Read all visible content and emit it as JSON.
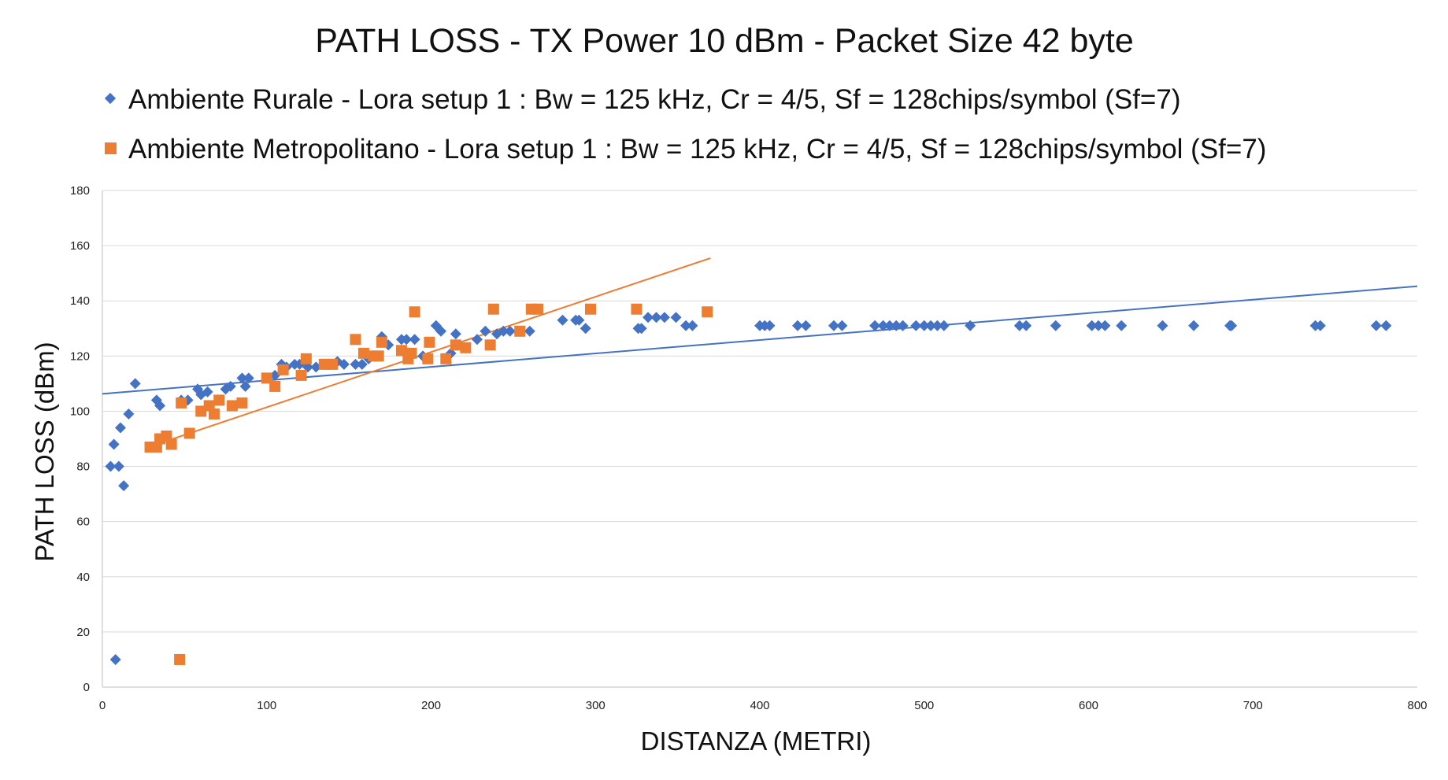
{
  "chart_data": {
    "type": "scatter",
    "title": "PATH LOSS - TX Power 10 dBm - Packet Size 42 byte",
    "xlabel": "DISTANZA (METRI)",
    "ylabel": "PATH LOSS (dBm)",
    "xlim": [
      0,
      800
    ],
    "ylim": [
      0,
      180
    ],
    "xticks": [
      0,
      100,
      200,
      300,
      400,
      500,
      600,
      700,
      800
    ],
    "yticks": [
      0,
      20,
      40,
      60,
      80,
      100,
      120,
      140,
      160,
      180
    ],
    "grid": true,
    "legend_position": "top",
    "series": [
      {
        "name": "Ambiente Rurale - Lora setup 1 : Bw = 125 kHz, Cr = 4/5, Sf = 128chips/symbol (Sf=7)",
        "marker": "diamond",
        "color": "#4472C4",
        "points": [
          [
            5,
            80
          ],
          [
            7,
            88
          ],
          [
            8,
            10
          ],
          [
            10,
            80
          ],
          [
            11,
            94
          ],
          [
            13,
            73
          ],
          [
            16,
            99
          ],
          [
            20,
            110
          ],
          [
            33,
            104
          ],
          [
            35,
            102
          ],
          [
            48,
            104
          ],
          [
            52,
            104
          ],
          [
            58,
            108
          ],
          [
            60,
            106
          ],
          [
            64,
            107
          ],
          [
            75,
            108
          ],
          [
            78,
            109
          ],
          [
            85,
            112
          ],
          [
            87,
            109
          ],
          [
            89,
            112
          ],
          [
            100,
            112
          ],
          [
            105,
            113
          ],
          [
            109,
            117
          ],
          [
            112,
            116
          ],
          [
            117,
            117
          ],
          [
            120,
            117
          ],
          [
            125,
            116
          ],
          [
            130,
            116
          ],
          [
            135,
            117
          ],
          [
            143,
            118
          ],
          [
            147,
            117
          ],
          [
            154,
            117
          ],
          [
            158,
            117
          ],
          [
            162,
            119
          ],
          [
            167,
            120
          ],
          [
            170,
            127
          ],
          [
            174,
            124
          ],
          [
            182,
            126
          ],
          [
            185,
            126
          ],
          [
            190,
            126
          ],
          [
            195,
            120
          ],
          [
            203,
            131
          ],
          [
            206,
            129
          ],
          [
            212,
            121
          ],
          [
            215,
            128
          ],
          [
            228,
            126
          ],
          [
            233,
            129
          ],
          [
            240,
            128
          ],
          [
            244,
            129
          ],
          [
            248,
            129
          ],
          [
            253,
            129
          ],
          [
            260,
            129
          ],
          [
            280,
            133
          ],
          [
            288,
            133
          ],
          [
            290,
            133
          ],
          [
            294,
            130
          ],
          [
            326,
            130
          ],
          [
            328,
            130
          ],
          [
            332,
            134
          ],
          [
            337,
            134
          ],
          [
            342,
            134
          ],
          [
            349,
            134
          ],
          [
            355,
            131
          ],
          [
            359,
            131
          ],
          [
            400,
            131
          ],
          [
            403,
            131
          ],
          [
            406,
            131
          ],
          [
            423,
            131
          ],
          [
            428,
            131
          ],
          [
            445,
            131
          ],
          [
            450,
            131
          ],
          [
            470,
            131
          ],
          [
            475,
            131
          ],
          [
            479,
            131
          ],
          [
            483,
            131
          ],
          [
            487,
            131
          ],
          [
            495,
            131
          ],
          [
            500,
            131
          ],
          [
            504,
            131
          ],
          [
            508,
            131
          ],
          [
            512,
            131
          ],
          [
            528,
            131
          ],
          [
            558,
            131
          ],
          [
            562,
            131
          ],
          [
            580,
            131
          ],
          [
            602,
            131
          ],
          [
            606,
            131
          ],
          [
            610,
            131
          ],
          [
            620,
            131
          ],
          [
            645,
            131
          ],
          [
            664,
            131
          ],
          [
            686,
            131
          ],
          [
            687,
            131
          ],
          [
            738,
            131
          ],
          [
            741,
            131
          ],
          [
            775,
            131
          ],
          [
            781,
            131
          ]
        ],
        "trendline": [
          [
            0,
            106.3
          ],
          [
            800,
            145.3
          ]
        ]
      },
      {
        "name": "Ambiente Metropolitano - Lora setup 1 : Bw = 125 kHz, Cr = 4/5, Sf = 128chips/symbol (Sf=7)",
        "marker": "square",
        "color": "#ED7D31",
        "points": [
          [
            29,
            87
          ],
          [
            33,
            87
          ],
          [
            35,
            90
          ],
          [
            39,
            91
          ],
          [
            42,
            88
          ],
          [
            47,
            10
          ],
          [
            48,
            103
          ],
          [
            53,
            92
          ],
          [
            60,
            100
          ],
          [
            65,
            102
          ],
          [
            68,
            99
          ],
          [
            71,
            104
          ],
          [
            79,
            102
          ],
          [
            85,
            103
          ],
          [
            100,
            112
          ],
          [
            105,
            109
          ],
          [
            110,
            115
          ],
          [
            121,
            113
          ],
          [
            124,
            119
          ],
          [
            135,
            117
          ],
          [
            140,
            117
          ],
          [
            154,
            126
          ],
          [
            159,
            121
          ],
          [
            165,
            120
          ],
          [
            168,
            120
          ],
          [
            170,
            125
          ],
          [
            182,
            122
          ],
          [
            186,
            119
          ],
          [
            188,
            121
          ],
          [
            190,
            136
          ],
          [
            198,
            119
          ],
          [
            199,
            125
          ],
          [
            209,
            119
          ],
          [
            215,
            124
          ],
          [
            221,
            123
          ],
          [
            236,
            124
          ],
          [
            238,
            137
          ],
          [
            254,
            129
          ],
          [
            261,
            137
          ],
          [
            265,
            137
          ],
          [
            297,
            137
          ],
          [
            325,
            137
          ],
          [
            368,
            136
          ]
        ],
        "trendline": [
          [
            29,
            87.2
          ],
          [
            370,
            155.5
          ]
        ]
      }
    ]
  }
}
